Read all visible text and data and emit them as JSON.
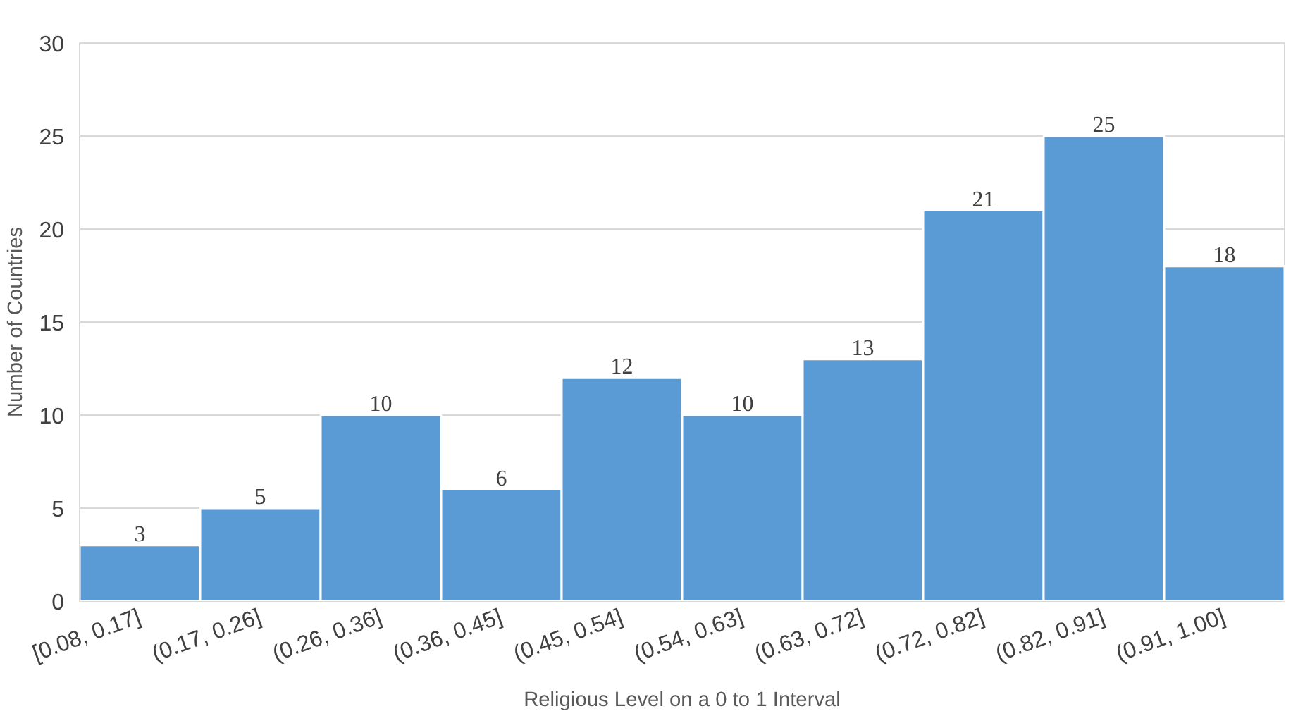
{
  "chart_data": {
    "type": "bar",
    "xlabel": "Religious Level on a 0 to 1 Interval",
    "ylabel": "Number of Countries",
    "categories": [
      "[0.08, 0.17]",
      "(0.17, 0.26]",
      "(0.26, 0.36]",
      "(0.36, 0.45]",
      "(0.45, 0.54]",
      "(0.54, 0.63]",
      "(0.63, 0.72]",
      "(0.72, 0.82]",
      "(0.82, 0.91]",
      "(0.91, 1.00]"
    ],
    "values": [
      3,
      5,
      10,
      6,
      12,
      10,
      13,
      21,
      25,
      18
    ],
    "color": "#5b9bd5",
    "ylim": [
      0,
      30
    ],
    "yticks": [
      0,
      5,
      10,
      15,
      20,
      25,
      30
    ],
    "grid": "y",
    "data_labels": true
  }
}
